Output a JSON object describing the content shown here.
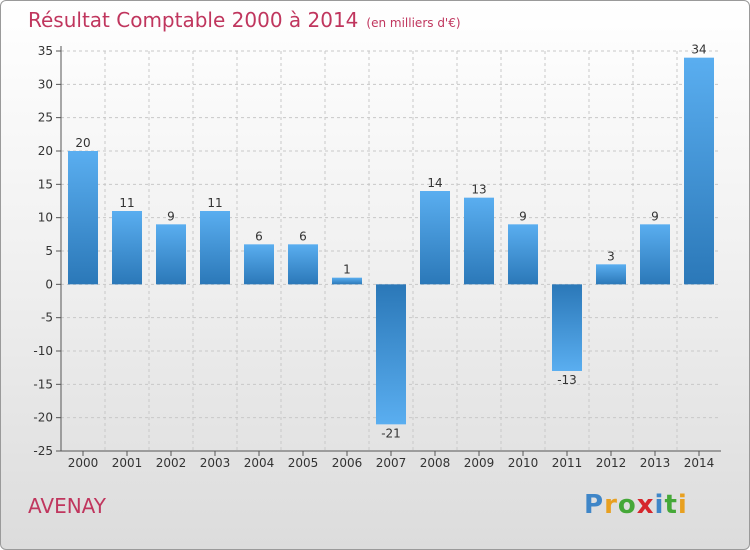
{
  "header": {
    "title": "Résultat Comptable 2000 à 2014",
    "subtitle": "(en milliers d'€)"
  },
  "footer": {
    "city": "AVENAY",
    "logo": {
      "letters": [
        "P",
        "r",
        "o",
        "x",
        "i",
        "t",
        "i"
      ],
      "colors": [
        "#3f86c8",
        "#e8a020",
        "#45a838",
        "#d6262c",
        "#3f86c8",
        "#45a838",
        "#e8a020"
      ]
    }
  },
  "chart_data": {
    "type": "bar",
    "title": "Résultat Comptable 2000 à 2014",
    "subtitle": "(en milliers d'€)",
    "xlabel": "",
    "ylabel": "",
    "categories": [
      "2000",
      "2001",
      "2002",
      "2003",
      "2004",
      "2005",
      "2006",
      "2007",
      "2008",
      "2009",
      "2010",
      "2011",
      "2012",
      "2013",
      "2014"
    ],
    "values": [
      20,
      11,
      9,
      11,
      6,
      6,
      1,
      -21,
      14,
      13,
      9,
      -13,
      3,
      9,
      34
    ],
    "value_labels": [
      "20",
      "11",
      "9",
      "11",
      "6",
      "6",
      "1",
      "-21",
      "14",
      "13",
      "9",
      "-13",
      "3",
      "9",
      "34"
    ],
    "yticks": [
      35,
      30,
      25,
      20,
      15,
      10,
      5,
      0,
      -5,
      -10,
      -15,
      -20,
      -25
    ],
    "ytick_labels": [
      "35",
      "30",
      "25",
      "20",
      "15",
      "10",
      "5",
      "0",
      "-5",
      "-10",
      "-15",
      "-20",
      "-25"
    ],
    "ylim": [
      -25,
      35
    ],
    "grid": true,
    "colors": {
      "bar_light": "#5aaef0",
      "bar_dark": "#2b78b8",
      "grid": "#c8c8c8",
      "axis": "#555555"
    }
  }
}
